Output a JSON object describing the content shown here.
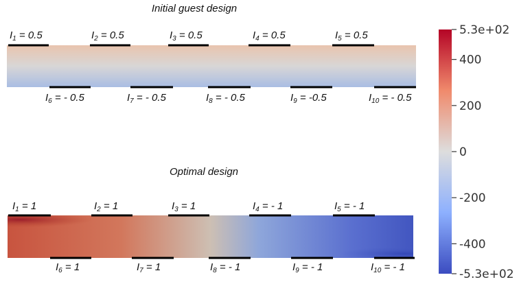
{
  "colors": {
    "cool": "#3b4cc0",
    "neutral": "#dddddd",
    "warm": "#b40426",
    "electrode": "#000000"
  },
  "colorbar": {
    "min": -530,
    "max": 530,
    "max_label": "5.3e+02",
    "min_label": "-5.3e+02",
    "ticks": [
      {
        "value": 400,
        "label": "400"
      },
      {
        "value": 200,
        "label": "200"
      },
      {
        "value": 0,
        "label": "0"
      },
      {
        "value": -200,
        "label": "-200"
      },
      {
        "value": -400,
        "label": "-400"
      }
    ]
  },
  "panels": [
    {
      "title": "Initial guest design",
      "field": {
        "left": 80,
        "right": 80,
        "top": 140,
        "bottom": -110
      },
      "top_electrodes": [
        {
          "sub": "1",
          "value": "0.5"
        },
        {
          "sub": "2",
          "value": "0.5"
        },
        {
          "sub": "3",
          "value": "0.5"
        },
        {
          "sub": "4",
          "value": "0.5"
        },
        {
          "sub": "5",
          "value": "0.5"
        }
      ],
      "bottom_electrodes": [
        {
          "sub": "6",
          "value": "- 0.5"
        },
        {
          "sub": "7",
          "value": "- 0.5"
        },
        {
          "sub": "8",
          "value": "- 0.5"
        },
        {
          "sub": "9",
          "value": "-0.5"
        },
        {
          "sub": "10",
          "value": "- 0.5"
        }
      ]
    },
    {
      "title": "Optimal design",
      "field": {
        "left": 470,
        "mid_left": 380,
        "mid": 0,
        "mid_right": -400,
        "right": -470
      },
      "top_electrodes": [
        {
          "sub": "1",
          "value": "1"
        },
        {
          "sub": "2",
          "value": "1"
        },
        {
          "sub": "3",
          "value": "1"
        },
        {
          "sub": "4",
          "value": "- 1"
        },
        {
          "sub": "5",
          "value": "- 1"
        }
      ],
      "bottom_electrodes": [
        {
          "sub": "6",
          "value": "1"
        },
        {
          "sub": "7",
          "value": "1"
        },
        {
          "sub": "8",
          "value": "- 1"
        },
        {
          "sub": "9",
          "value": "- 1"
        },
        {
          "sub": "10",
          "value": "- 1"
        }
      ]
    }
  ]
}
